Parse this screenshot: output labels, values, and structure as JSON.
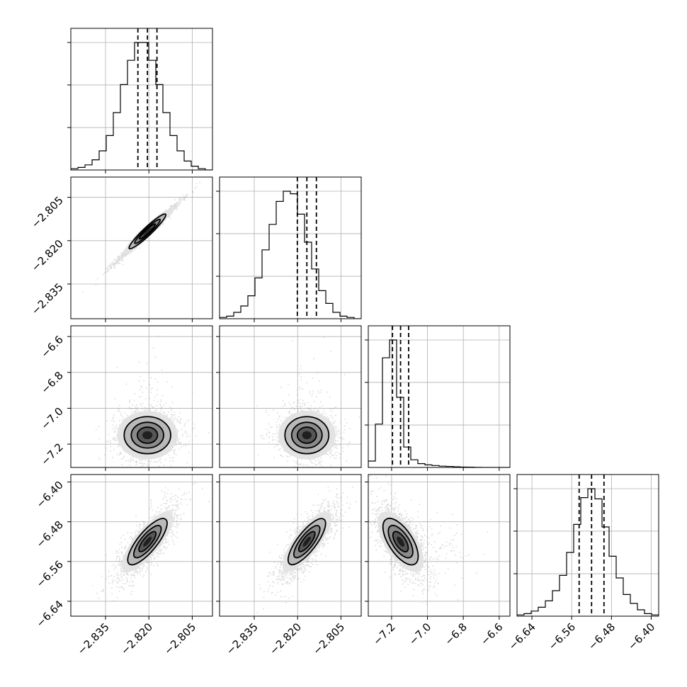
{
  "figure": {
    "type": "corner-plot",
    "grid": true
  },
  "chart_data": {
    "type": "corner",
    "parameters": [
      {
        "range": [
          -2.847,
          -2.798
        ],
        "ticks": [
          -2.835,
          -2.82,
          -2.805
        ],
        "tick_labels": [
          "−2.835",
          "−2.820",
          "−2.805"
        ],
        "mean": -2.8205,
        "sigma": 0.0035,
        "quantiles": [
          -2.8238,
          -2.8205,
          -2.8172
        ]
      },
      {
        "range": [
          -2.847,
          -2.798
        ],
        "ticks": [
          -2.835,
          -2.82,
          -2.805
        ],
        "tick_labels": [
          "−2.835",
          "−2.820",
          "−2.805"
        ],
        "mean": -2.8168,
        "sigma": 0.0033,
        "quantiles": [
          -2.8201,
          -2.8168,
          -2.8135
        ]
      },
      {
        "range": [
          -7.33,
          -6.54
        ],
        "ticks": [
          -7.2,
          -7.0,
          -6.8,
          -6.6
        ],
        "tick_labels": [
          "−7.2",
          "−7.0",
          "−6.8",
          "−6.6"
        ],
        "mean": -7.15,
        "sigma": 0.045,
        "quantiles": [
          -7.195,
          -7.15,
          -7.105
        ]
      },
      {
        "range": [
          -6.67,
          -6.385
        ],
        "ticks": [
          -6.64,
          -6.56,
          -6.48,
          -6.4
        ],
        "tick_labels": [
          "−6.64",
          "−6.56",
          "−6.48",
          "−6.40"
        ],
        "mean": -6.52,
        "sigma": 0.025,
        "quantiles": [
          -6.545,
          -6.52,
          -6.495
        ]
      }
    ],
    "hist_bins": 20,
    "histograms": [
      [
        0.01,
        0.02,
        0.04,
        0.08,
        0.15,
        0.27,
        0.45,
        0.67,
        0.86,
        1.0,
        1.0,
        0.86,
        0.67,
        0.45,
        0.27,
        0.15,
        0.07,
        0.03,
        0.01,
        0.0
      ],
      [
        0.01,
        0.02,
        0.05,
        0.1,
        0.18,
        0.32,
        0.54,
        0.74,
        0.92,
        1.0,
        0.98,
        0.82,
        0.6,
        0.39,
        0.22,
        0.12,
        0.05,
        0.02,
        0.01,
        0.0
      ],
      [
        0.05,
        0.34,
        0.86,
        1.0,
        0.55,
        0.16,
        0.06,
        0.03,
        0.02,
        0.015,
        0.01,
        0.008,
        0.005,
        0.003,
        0.002,
        0.001,
        0.0,
        0.0,
        0.0,
        0.0
      ],
      [
        0.01,
        0.02,
        0.04,
        0.07,
        0.12,
        0.2,
        0.32,
        0.5,
        0.72,
        0.93,
        1.0,
        0.92,
        0.7,
        0.47,
        0.3,
        0.17,
        0.1,
        0.05,
        0.02,
        0.01
      ]
    ],
    "correlations": {
      "1-0": 0.99,
      "2-0": 0.0,
      "2-1": 0.0,
      "3-0": 0.8,
      "3-1": 0.8,
      "3-2": -0.6
    }
  }
}
